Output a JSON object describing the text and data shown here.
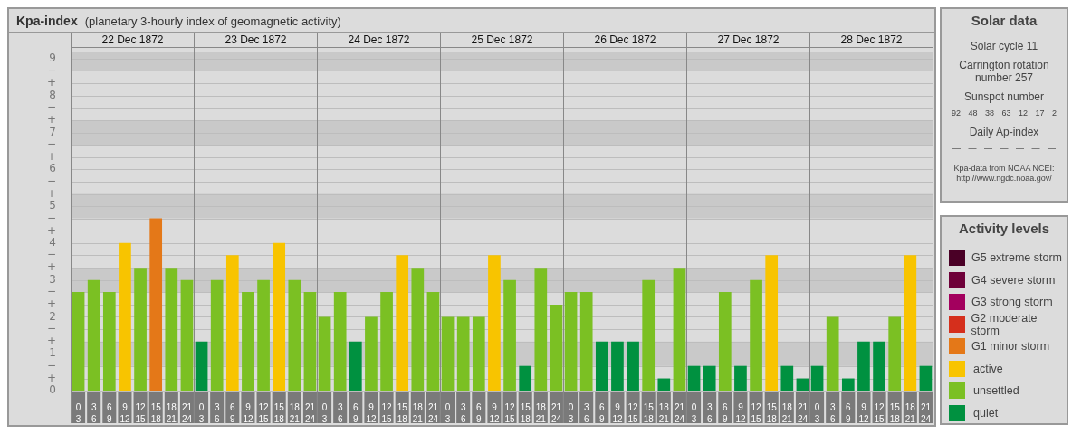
{
  "chart_data": [
    {
      "type": "other",
      "title": "Kpa-index",
      "subtitle": "(planetary 3-hourly index of geomagnetic activity)"
    },
    {
      "type": "bar",
      "title": "22 Dec 1872",
      "categories": [
        "0\n3",
        "3\n6",
        "6\n9",
        "9\n12",
        "12\n15",
        "15\n18",
        "18\n21",
        "21\n24"
      ],
      "stacked": true,
      "series": [
        {
          "color": "#e47818",
          "values": [
            null,
            null,
            null,
            null,
            null,
            4.67,
            null,
            null
          ]
        },
        {
          "color": "#f8c400",
          "values": [
            null,
            null,
            null,
            4,
            null,
            null,
            null,
            null
          ]
        },
        {
          "color": "#7bc023",
          "values": [
            2.67,
            3,
            2.67,
            null,
            3.33,
            null,
            3.33,
            3
          ]
        }
      ],
      "ylim": [
        0,
        9.17
      ],
      "yticks": [
        0,
        {
          "value": 0.33,
          "label": "+"
        },
        {
          "value": 0.67,
          "label": "−"
        },
        1,
        {
          "value": 1.33,
          "label": "+"
        },
        {
          "value": 1.67,
          "label": "−"
        },
        2,
        {
          "value": 2.33,
          "label": "+"
        },
        {
          "value": 2.67,
          "label": "−"
        },
        3,
        {
          "value": 3.33,
          "label": "+"
        },
        {
          "value": 3.67,
          "label": "−"
        },
        4,
        {
          "value": 4.33,
          "label": "+"
        },
        {
          "value": 4.67,
          "label": "−"
        },
        5,
        {
          "value": 5.33,
          "label": "+"
        },
        {
          "value": 5.67,
          "label": "−"
        },
        6,
        {
          "value": 6.33,
          "label": "+"
        },
        {
          "value": 6.67,
          "label": "−"
        },
        7,
        {
          "value": 7.33,
          "label": "+"
        },
        {
          "value": 7.67,
          "label": "−"
        },
        8,
        {
          "value": 8.33,
          "label": "+"
        },
        {
          "value": 8.67,
          "label": "−"
        },
        9
      ],
      "bands": [
        {
          "axis": "y",
          "from": 0.67,
          "to": 1.33,
          "color": "#c9c9c9"
        },
        {
          "axis": "y",
          "from": 2.67,
          "to": 3.33,
          "color": "#c9c9c9"
        },
        {
          "axis": "y",
          "from": 4.67,
          "to": 5.33,
          "color": "#c9c9c9"
        },
        {
          "axis": "y",
          "from": 6.67,
          "to": 7.33,
          "color": "#c9c9c9"
        },
        {
          "axis": "y",
          "from": 8.67,
          "to": 9.17,
          "color": "#c9c9c9"
        }
      ],
      "grid": "y"
    },
    {
      "type": "bar",
      "title": "23 Dec 1872",
      "categories": [
        "0\n3",
        "3\n6",
        "6\n9",
        "9\n12",
        "12\n15",
        "15\n18",
        "18\n21",
        "21\n24"
      ],
      "stacked": true,
      "series": [
        {
          "color": "#f8c400",
          "values": [
            null,
            null,
            3.67,
            null,
            null,
            4,
            null,
            null
          ]
        },
        {
          "color": "#7bc023",
          "values": [
            null,
            3,
            null,
            2.67,
            3,
            null,
            3,
            2.67
          ]
        },
        {
          "color": "#009140",
          "values": [
            1.33,
            null,
            null,
            null,
            null,
            null,
            null,
            null
          ]
        }
      ],
      "ylim": [
        0,
        9.17
      ],
      "yticks": [
        0,
        {
          "value": 0.33,
          "label": null
        },
        {
          "value": 0.67,
          "label": null
        },
        1,
        {
          "value": 1.33,
          "label": null
        },
        {
          "value": 1.67,
          "label": null
        },
        2,
        {
          "value": 2.33,
          "label": null
        },
        {
          "value": 2.67,
          "label": null
        },
        3,
        {
          "value": 3.33,
          "label": null
        },
        {
          "value": 3.67,
          "label": null
        },
        4,
        {
          "value": 4.33,
          "label": null
        },
        {
          "value": 4.67,
          "label": null
        },
        5,
        {
          "value": 5.33,
          "label": null
        },
        {
          "value": 5.67,
          "label": null
        },
        6,
        {
          "value": 6.33,
          "label": null
        },
        {
          "value": 6.67,
          "label": null
        },
        7,
        {
          "value": 7.33,
          "label": null
        },
        {
          "value": 7.67,
          "label": null
        },
        8,
        {
          "value": 8.33,
          "label": null
        },
        {
          "value": 8.67,
          "label": null
        },
        9
      ],
      "bands": [
        {
          "axis": "y",
          "from": 0.67,
          "to": 1.33,
          "color": "#c9c9c9"
        },
        {
          "axis": "y",
          "from": 2.67,
          "to": 3.33,
          "color": "#c9c9c9"
        },
        {
          "axis": "y",
          "from": 4.67,
          "to": 5.33,
          "color": "#c9c9c9"
        },
        {
          "axis": "y",
          "from": 6.67,
          "to": 7.33,
          "color": "#c9c9c9"
        },
        {
          "axis": "y",
          "from": 8.67,
          "to": 9.17,
          "color": "#c9c9c9"
        }
      ],
      "grid": "y",
      "tick_labels": "x"
    },
    {
      "type": "bar",
      "title": "24 Dec 1872",
      "categories": [
        "0\n3",
        "3\n6",
        "6\n9",
        "9\n12",
        "12\n15",
        "15\n18",
        "18\n21",
        "21\n24"
      ],
      "stacked": true,
      "series": [
        {
          "color": "#f8c400",
          "values": [
            null,
            null,
            null,
            null,
            null,
            3.67,
            null,
            null
          ]
        },
        {
          "color": "#7bc023",
          "values": [
            2,
            2.67,
            null,
            2,
            2.67,
            null,
            3.33,
            2.67
          ]
        },
        {
          "color": "#009140",
          "values": [
            null,
            null,
            1.33,
            null,
            null,
            null,
            null,
            null
          ]
        }
      ],
      "ylim": [
        0,
        9.17
      ],
      "yticks": [
        0,
        {
          "value": 0.33,
          "label": null
        },
        {
          "value": 0.67,
          "label": null
        },
        1,
        {
          "value": 1.33,
          "label": null
        },
        {
          "value": 1.67,
          "label": null
        },
        2,
        {
          "value": 2.33,
          "label": null
        },
        {
          "value": 2.67,
          "label": null
        },
        3,
        {
          "value": 3.33,
          "label": null
        },
        {
          "value": 3.67,
          "label": null
        },
        4,
        {
          "value": 4.33,
          "label": null
        },
        {
          "value": 4.67,
          "label": null
        },
        5,
        {
          "value": 5.33,
          "label": null
        },
        {
          "value": 5.67,
          "label": null
        },
        6,
        {
          "value": 6.33,
          "label": null
        },
        {
          "value": 6.67,
          "label": null
        },
        7,
        {
          "value": 7.33,
          "label": null
        },
        {
          "value": 7.67,
          "label": null
        },
        8,
        {
          "value": 8.33,
          "label": null
        },
        {
          "value": 8.67,
          "label": null
        },
        9
      ],
      "bands": [
        {
          "axis": "y",
          "from": 0.67,
          "to": 1.33,
          "color": "#c9c9c9"
        },
        {
          "axis": "y",
          "from": 2.67,
          "to": 3.33,
          "color": "#c9c9c9"
        },
        {
          "axis": "y",
          "from": 4.67,
          "to": 5.33,
          "color": "#c9c9c9"
        },
        {
          "axis": "y",
          "from": 6.67,
          "to": 7.33,
          "color": "#c9c9c9"
        },
        {
          "axis": "y",
          "from": 8.67,
          "to": 9.17,
          "color": "#c9c9c9"
        }
      ],
      "grid": "y",
      "tick_labels": "x"
    },
    {
      "type": "bar",
      "title": "25 Dec 1872",
      "categories": [
        "0\n3",
        "3\n6",
        "6\n9",
        "9\n12",
        "12\n15",
        "15\n18",
        "18\n21",
        "21\n24"
      ],
      "stacked": true,
      "series": [
        {
          "color": "#f8c400",
          "values": [
            null,
            null,
            null,
            3.67,
            null,
            null,
            null,
            null
          ]
        },
        {
          "color": "#7bc023",
          "values": [
            2,
            2,
            2,
            null,
            3,
            null,
            3.33,
            2.33
          ]
        },
        {
          "color": "#009140",
          "values": [
            null,
            null,
            null,
            null,
            null,
            0.67,
            null,
            null
          ]
        }
      ],
      "ylim": [
        0,
        9.17
      ],
      "yticks": [
        0,
        {
          "value": 0.33,
          "label": null
        },
        {
          "value": 0.67,
          "label": null
        },
        1,
        {
          "value": 1.33,
          "label": null
        },
        {
          "value": 1.67,
          "label": null
        },
        2,
        {
          "value": 2.33,
          "label": null
        },
        {
          "value": 2.67,
          "label": null
        },
        3,
        {
          "value": 3.33,
          "label": null
        },
        {
          "value": 3.67,
          "label": null
        },
        4,
        {
          "value": 4.33,
          "label": null
        },
        {
          "value": 4.67,
          "label": null
        },
        5,
        {
          "value": 5.33,
          "label": null
        },
        {
          "value": 5.67,
          "label": null
        },
        6,
        {
          "value": 6.33,
          "label": null
        },
        {
          "value": 6.67,
          "label": null
        },
        7,
        {
          "value": 7.33,
          "label": null
        },
        {
          "value": 7.67,
          "label": null
        },
        8,
        {
          "value": 8.33,
          "label": null
        },
        {
          "value": 8.67,
          "label": null
        },
        9
      ],
      "bands": [
        {
          "axis": "y",
          "from": 0.67,
          "to": 1.33,
          "color": "#c9c9c9"
        },
        {
          "axis": "y",
          "from": 2.67,
          "to": 3.33,
          "color": "#c9c9c9"
        },
        {
          "axis": "y",
          "from": 4.67,
          "to": 5.33,
          "color": "#c9c9c9"
        },
        {
          "axis": "y",
          "from": 6.67,
          "to": 7.33,
          "color": "#c9c9c9"
        },
        {
          "axis": "y",
          "from": 8.67,
          "to": 9.17,
          "color": "#c9c9c9"
        }
      ],
      "grid": "y",
      "tick_labels": "x"
    },
    {
      "type": "bar",
      "title": "26 Dec 1872",
      "categories": [
        "0\n3",
        "3\n6",
        "6\n9",
        "9\n12",
        "12\n15",
        "15\n18",
        "18\n21",
        "21\n24"
      ],
      "stacked": true,
      "series": [
        {
          "color": "#7bc023",
          "values": [
            2.67,
            2.67,
            null,
            null,
            null,
            3,
            null,
            3.33
          ]
        },
        {
          "color": "#009140",
          "values": [
            null,
            null,
            1.33,
            1.33,
            1.33,
            null,
            0.33,
            null
          ]
        }
      ],
      "ylim": [
        0,
        9.17
      ],
      "yticks": [
        0,
        {
          "value": 0.33,
          "label": null
        },
        {
          "value": 0.67,
          "label": null
        },
        1,
        {
          "value": 1.33,
          "label": null
        },
        {
          "value": 1.67,
          "label": null
        },
        2,
        {
          "value": 2.33,
          "label": null
        },
        {
          "value": 2.67,
          "label": null
        },
        3,
        {
          "value": 3.33,
          "label": null
        },
        {
          "value": 3.67,
          "label": null
        },
        4,
        {
          "value": 4.33,
          "label": null
        },
        {
          "value": 4.67,
          "label": null
        },
        5,
        {
          "value": 5.33,
          "label": null
        },
        {
          "value": 5.67,
          "label": null
        },
        6,
        {
          "value": 6.33,
          "label": null
        },
        {
          "value": 6.67,
          "label": null
        },
        7,
        {
          "value": 7.33,
          "label": null
        },
        {
          "value": 7.67,
          "label": null
        },
        8,
        {
          "value": 8.33,
          "label": null
        },
        {
          "value": 8.67,
          "label": null
        },
        9
      ],
      "bands": [
        {
          "axis": "y",
          "from": 0.67,
          "to": 1.33,
          "color": "#c9c9c9"
        },
        {
          "axis": "y",
          "from": 2.67,
          "to": 3.33,
          "color": "#c9c9c9"
        },
        {
          "axis": "y",
          "from": 4.67,
          "to": 5.33,
          "color": "#c9c9c9"
        },
        {
          "axis": "y",
          "from": 6.67,
          "to": 7.33,
          "color": "#c9c9c9"
        },
        {
          "axis": "y",
          "from": 8.67,
          "to": 9.17,
          "color": "#c9c9c9"
        }
      ],
      "grid": "y",
      "tick_labels": "x"
    },
    {
      "type": "bar",
      "title": "27 Dec 1872",
      "categories": [
        "0\n3",
        "3\n6",
        "6\n9",
        "9\n12",
        "12\n15",
        "15\n18",
        "18\n21",
        "21\n24"
      ],
      "stacked": true,
      "series": [
        {
          "color": "#f8c400",
          "values": [
            null,
            null,
            null,
            null,
            null,
            3.67,
            null,
            null
          ]
        },
        {
          "color": "#7bc023",
          "values": [
            null,
            null,
            2.67,
            null,
            3,
            null,
            null,
            null
          ]
        },
        {
          "color": "#009140",
          "values": [
            0.67,
            0.67,
            null,
            0.67,
            null,
            null,
            0.67,
            0.33
          ]
        }
      ],
      "ylim": [
        0,
        9.17
      ],
      "yticks": [
        0,
        {
          "value": 0.33,
          "label": null
        },
        {
          "value": 0.67,
          "label": null
        },
        1,
        {
          "value": 1.33,
          "label": null
        },
        {
          "value": 1.67,
          "label": null
        },
        2,
        {
          "value": 2.33,
          "label": null
        },
        {
          "value": 2.67,
          "label": null
        },
        3,
        {
          "value": 3.33,
          "label": null
        },
        {
          "value": 3.67,
          "label": null
        },
        4,
        {
          "value": 4.33,
          "label": null
        },
        {
          "value": 4.67,
          "label": null
        },
        5,
        {
          "value": 5.33,
          "label": null
        },
        {
          "value": 5.67,
          "label": null
        },
        6,
        {
          "value": 6.33,
          "label": null
        },
        {
          "value": 6.67,
          "label": null
        },
        7,
        {
          "value": 7.33,
          "label": null
        },
        {
          "value": 7.67,
          "label": null
        },
        8,
        {
          "value": 8.33,
          "label": null
        },
        {
          "value": 8.67,
          "label": null
        },
        9
      ],
      "bands": [
        {
          "axis": "y",
          "from": 0.67,
          "to": 1.33,
          "color": "#c9c9c9"
        },
        {
          "axis": "y",
          "from": 2.67,
          "to": 3.33,
          "color": "#c9c9c9"
        },
        {
          "axis": "y",
          "from": 4.67,
          "to": 5.33,
          "color": "#c9c9c9"
        },
        {
          "axis": "y",
          "from": 6.67,
          "to": 7.33,
          "color": "#c9c9c9"
        },
        {
          "axis": "y",
          "from": 8.67,
          "to": 9.17,
          "color": "#c9c9c9"
        }
      ],
      "grid": "y",
      "tick_labels": "x"
    },
    {
      "type": "bar",
      "title": "28 Dec 1872",
      "categories": [
        "0\n3",
        "3\n6",
        "6\n9",
        "9\n12",
        "12\n15",
        "15\n18",
        "18\n21",
        "21\n24"
      ],
      "stacked": true,
      "series": [
        {
          "name": "G5 extreme storm",
          "color": "#4a0026",
          "values": [
            null,
            null,
            null,
            null,
            null,
            null,
            null,
            null
          ]
        },
        {
          "name": "G4 severe storm",
          "color": "#6e0039",
          "values": [
            null,
            null,
            null,
            null,
            null,
            null,
            null,
            null
          ]
        },
        {
          "name": "G3 strong storm",
          "color": "#a3005e",
          "values": [
            null,
            null,
            null,
            null,
            null,
            null,
            null,
            null
          ]
        },
        {
          "name": "G2 moderate storm",
          "color": "#d52f1c",
          "values": [
            null,
            null,
            null,
            null,
            null,
            null,
            null,
            null
          ]
        },
        {
          "name": "G1 minor storm",
          "color": "#e47818",
          "values": [
            null,
            null,
            null,
            null,
            null,
            null,
            null,
            null
          ]
        },
        {
          "name": "active",
          "color": "#f8c400",
          "values": [
            null,
            null,
            null,
            null,
            null,
            null,
            3.67,
            null
          ]
        },
        {
          "name": "unsettled",
          "color": "#7bc023",
          "values": [
            null,
            2,
            null,
            null,
            null,
            2,
            null,
            null
          ]
        },
        {
          "name": "quiet",
          "color": "#009140",
          "values": [
            0.67,
            null,
            0.33,
            1.33,
            1.33,
            null,
            null,
            0.67
          ]
        }
      ],
      "ylim": [
        0,
        9.17
      ],
      "yticks": [
        0,
        {
          "value": 0.33,
          "label": null
        },
        {
          "value": 0.67,
          "label": null
        },
        1,
        {
          "value": 1.33,
          "label": null
        },
        {
          "value": 1.67,
          "label": null
        },
        2,
        {
          "value": 2.33,
          "label": null
        },
        {
          "value": 2.67,
          "label": null
        },
        3,
        {
          "value": 3.33,
          "label": null
        },
        {
          "value": 3.67,
          "label": null
        },
        4,
        {
          "value": 4.33,
          "label": null
        },
        {
          "value": 4.67,
          "label": null
        },
        5,
        {
          "value": 5.33,
          "label": null
        },
        {
          "value": 5.67,
          "label": null
        },
        6,
        {
          "value": 6.33,
          "label": null
        },
        {
          "value": 6.67,
          "label": null
        },
        7,
        {
          "value": 7.33,
          "label": null
        },
        {
          "value": 7.67,
          "label": null
        },
        8,
        {
          "value": 8.33,
          "label": null
        },
        {
          "value": 8.67,
          "label": null
        },
        9
      ],
      "bands": [
        {
          "axis": "y",
          "from": 0.67,
          "to": 1.33,
          "color": "#c9c9c9"
        },
        {
          "axis": "y",
          "from": 2.67,
          "to": 3.33,
          "color": "#c9c9c9"
        },
        {
          "axis": "y",
          "from": 4.67,
          "to": 5.33,
          "color": "#c9c9c9"
        },
        {
          "axis": "y",
          "from": 6.67,
          "to": 7.33,
          "color": "#c9c9c9"
        },
        {
          "axis": "y",
          "from": 8.67,
          "to": 9.17,
          "color": "#c9c9c9"
        }
      ],
      "grid": "y",
      "tick_labels": "x",
      "legend": "right",
      "legend_title": "Activity levels"
    },
    {
      "type": "other",
      "title": "Solar data",
      "annotations": [
        "Solar cycle 11",
        "Carrington rotation number 257",
        "Sunspot number",
        "92 48 38 63 12 17 2",
        "Daily Ap-index",
        "— — — — — — —",
        "Kpa-data from NOAA NCEI: http://www.ngdc.noaa.gov/"
      ]
    }
  ]
}
